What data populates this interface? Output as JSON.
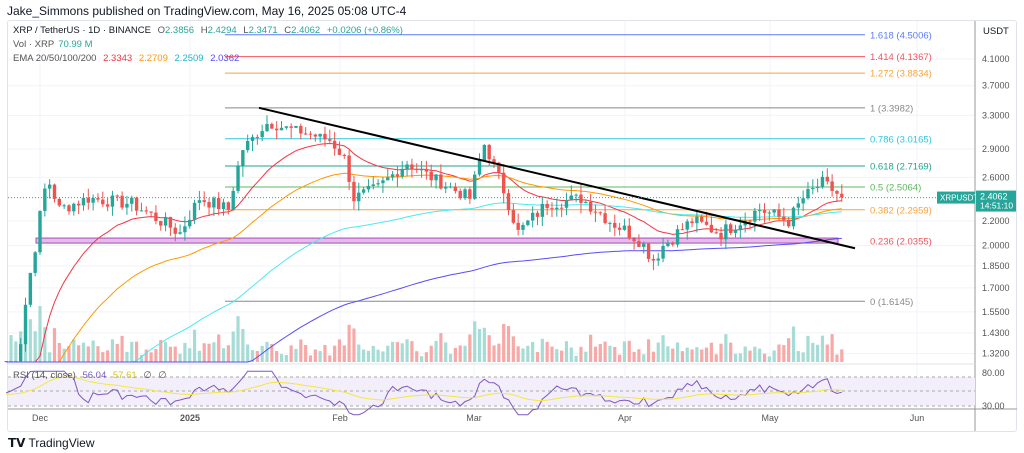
{
  "header": {
    "published": "Jake_Simmons published on TradingView.com, May 16, 2025 05:08 UTC-4"
  },
  "legend": {
    "symbol": "XRP / TetherUS · 1D · BINANCE",
    "o_label": "O",
    "o": "2.3856",
    "h_label": "H",
    "h": "2.4294",
    "l_label": "L",
    "l": "2.3471",
    "c_label": "C",
    "c": "2.4062",
    "change": "+0.0206 (+0.86%)",
    "vol_label": "Vol · XRP",
    "vol": "70.99 M",
    "ema_label": "EMA 20/50/100/200",
    "ema20": "2.3343",
    "ema50": "2.2709",
    "ema100": "2.2509",
    "ema200": "2.0362",
    "rsi_label": "RSI (14, close)",
    "rsi": "56.04",
    "rsi_ma": "57.61",
    "rsi_na1": "∅",
    "rsi_na2": "∅"
  },
  "price_axis": {
    "currency": "USDT",
    "ticks": [
      "4.1000",
      "3.7000",
      "3.3000",
      "2.9000",
      "2.6000",
      "2.2000",
      "2.0000",
      "1.8500",
      "1.7000",
      "1.5500",
      "1.4300",
      "1.3200"
    ],
    "rsi_ticks": [
      "80.00",
      "30.00"
    ]
  },
  "last_price": {
    "symbol": "XRPUSDT",
    "price": "2.4062",
    "countdown": "14:51:10"
  },
  "time_axis": [
    "Dec",
    "2025",
    "Feb",
    "Mar",
    "Apr",
    "May",
    "Jun"
  ],
  "fib_levels": [
    {
      "label": "1.618 (4.5006)",
      "price": 4.5006,
      "color": "#5b7cf5"
    },
    {
      "label": "1.414 (4.1367)",
      "price": 4.1367,
      "color": "#f0545f"
    },
    {
      "label": "1.272 (3.8834)",
      "price": 3.8834,
      "color": "#f7a33b"
    },
    {
      "label": "1 (3.3982)",
      "price": 3.3982,
      "color": "#888888"
    },
    {
      "label": "0.786 (3.0165)",
      "price": 3.0165,
      "color": "#2ec8e0"
    },
    {
      "label": "0.618 (2.7169)",
      "price": 2.7169,
      "color": "#22a38f"
    },
    {
      "label": "0.5 (2.5064)",
      "price": 2.5064,
      "color": "#5cb85c"
    },
    {
      "label": "0.382 (2.2959)",
      "price": 2.2959,
      "color": "#f7a33b"
    },
    {
      "label": "0.236 (2.0355)",
      "price": 2.0355,
      "color": "#f0545f"
    },
    {
      "label": "0 (1.6145)",
      "price": 1.6145,
      "color": "#888888"
    }
  ],
  "colors": {
    "up": "#26a69a",
    "down": "#ef5350",
    "ema20": "#f23645",
    "ema50": "#ff9800",
    "ema100": "#4de8f0",
    "ema200": "#5b4cf5",
    "rsi": "#7e57c2",
    "rsi_ma": "#f5e642"
  },
  "chart_data": {
    "type": "candlestick",
    "keypoints_day_price": [
      [
        -7,
        1.1
      ],
      [
        -4,
        1.4
      ],
      [
        -1,
        2.0
      ],
      [
        1.5,
        2.6
      ],
      [
        4,
        2.3
      ],
      [
        10,
        2.4
      ],
      [
        19,
        2.35
      ],
      [
        29,
        2.1
      ],
      [
        33,
        2.4
      ],
      [
        39,
        2.3
      ],
      [
        42,
        2.9
      ],
      [
        47,
        3.2
      ],
      [
        54,
        3.1
      ],
      [
        60,
        3.0
      ],
      [
        63,
        2.8
      ],
      [
        65,
        2.4
      ],
      [
        70,
        2.5
      ],
      [
        76,
        2.75
      ],
      [
        81,
        2.6
      ],
      [
        89,
        2.4
      ],
      [
        92,
        2.95
      ],
      [
        95,
        2.6
      ],
      [
        99,
        2.1
      ],
      [
        105,
        2.35
      ],
      [
        112,
        2.4
      ],
      [
        118,
        2.2
      ],
      [
        124,
        2.05
      ],
      [
        127,
        1.9
      ],
      [
        129,
        2.0
      ],
      [
        135,
        2.2
      ],
      [
        141,
        2.1
      ],
      [
        149,
        2.3
      ],
      [
        155,
        2.2
      ],
      [
        158,
        2.4
      ],
      [
        162,
        2.55
      ],
      [
        166,
        2.4062
      ]
    ],
    "trendline_prices": [
      3.3982,
      1.98
    ]
  },
  "brand": {
    "name": "TradingView"
  }
}
